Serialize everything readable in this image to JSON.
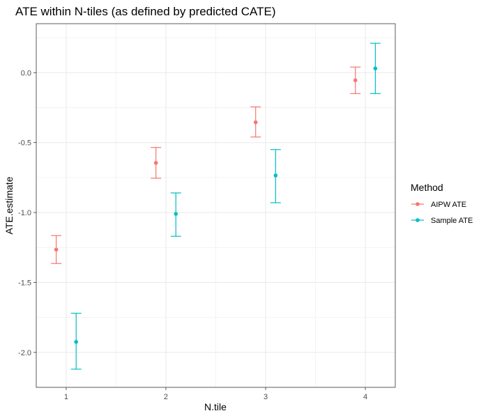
{
  "chart_data": {
    "type": "scatter",
    "title": "ATE within N-tiles (as defined by predicted CATE)",
    "xlabel": "N.tile",
    "ylabel": "ATE.estimate",
    "categories": [
      "1",
      "2",
      "3",
      "4"
    ],
    "xlim": [
      0.7,
      4.3
    ],
    "ylim": [
      -2.25,
      0.35
    ],
    "yticks": [
      0.0,
      -0.5,
      -1.0,
      -1.5,
      -2.0
    ],
    "ytick_labels": [
      "0.0",
      "-0.5",
      "-1.0",
      "-1.5",
      "-2.0"
    ],
    "grid": true,
    "error_bars": true,
    "legend": {
      "title": "Method",
      "position": "right"
    },
    "series": [
      {
        "name": "AIPW ATE",
        "color": "#F8766D",
        "dodge": -0.1,
        "x": [
          1,
          2,
          3,
          4
        ],
        "y": [
          -1.265,
          -0.645,
          -0.355,
          -0.055
        ],
        "ymin": [
          -1.365,
          -0.755,
          -0.46,
          -0.15
        ],
        "ymax": [
          -1.165,
          -0.535,
          -0.245,
          0.04
        ]
      },
      {
        "name": "Sample ATE",
        "color": "#00BFC4",
        "dodge": 0.1,
        "x": [
          1,
          2,
          3,
          4
        ],
        "y": [
          -1.925,
          -1.01,
          -0.735,
          0.03
        ],
        "ymin": [
          -2.12,
          -1.17,
          -0.93,
          -0.15
        ],
        "ymax": [
          -1.72,
          -0.86,
          -0.55,
          0.21
        ]
      }
    ]
  }
}
